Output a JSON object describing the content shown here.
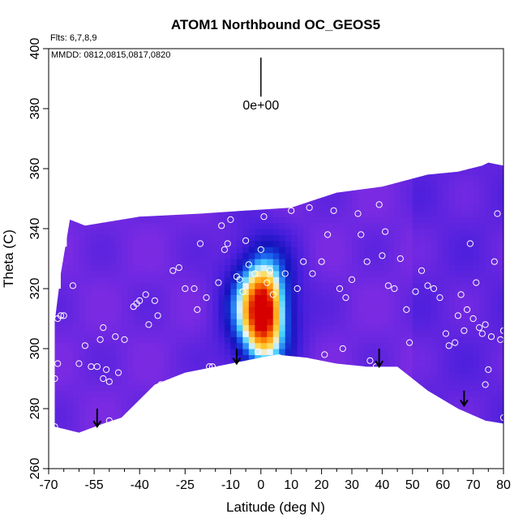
{
  "chart_data": {
    "type": "heatmap",
    "title": "ATOM1 Northbound OC_GEOS5",
    "xlabel": "Latitude (deg N)",
    "ylabel": "Theta (C)",
    "xlim": [
      -70,
      80
    ],
    "ylim": [
      260,
      400
    ],
    "x_major_ticks": [
      -70,
      -55,
      -40,
      -25,
      -10,
      0,
      10,
      20,
      30,
      40,
      50,
      60,
      70,
      80
    ],
    "x_minor_ticks": [
      -65,
      -60,
      -50,
      -45,
      -35,
      -30,
      -20,
      -15,
      -5,
      5,
      15,
      25,
      35,
      45,
      55,
      65,
      75
    ],
    "y_ticks": [
      260,
      280,
      300,
      320,
      340,
      360,
      380,
      400
    ],
    "annotations": {
      "flights": "Flts: 6,7,8,9",
      "dates": "MMDD: 0812,0815,0817,0820",
      "scale_label": "0e+00",
      "scale_x": 0,
      "scale_y_top": 397,
      "scale_y_bottom": 384
    },
    "colors": {
      "background_field": "#7a2be2",
      "low": "#1010c0",
      "mid": "#30c0ff",
      "high": "#ffb000",
      "peak": "#dd0000",
      "markers": "#ffffff",
      "arrows": "#000000"
    },
    "domain_bottom": [
      [
        -68,
        274
      ],
      [
        -60,
        272
      ],
      [
        -52,
        275
      ],
      [
        -46,
        277
      ],
      [
        -35,
        288
      ],
      [
        -25,
        292
      ],
      [
        -15,
        294
      ],
      [
        -5,
        296
      ],
      [
        5,
        298
      ],
      [
        15,
        297
      ],
      [
        25,
        295
      ],
      [
        35,
        294
      ],
      [
        45,
        294
      ],
      [
        55,
        286
      ],
      [
        65,
        280
      ],
      [
        74,
        276
      ],
      [
        80,
        275
      ]
    ],
    "domain_top": [
      [
        -68,
        309
      ],
      [
        -66,
        325
      ],
      [
        -63,
        343
      ],
      [
        -58,
        341
      ],
      [
        -40,
        344
      ],
      [
        -20,
        345
      ],
      [
        -5,
        346
      ],
      [
        10,
        347
      ],
      [
        25,
        352
      ],
      [
        40,
        354
      ],
      [
        55,
        358
      ],
      [
        65,
        359
      ],
      [
        73,
        361
      ],
      [
        75,
        362
      ],
      [
        80,
        361
      ]
    ],
    "hotspot": {
      "center_lat": 0,
      "center_theta": 313,
      "lat_halfwidth": 14,
      "theta_halfwidth": 22,
      "peak_lat": 1,
      "peak_theta": 312
    },
    "arrows": [
      {
        "lat": -54,
        "theta_top": 280,
        "theta_bottom": 274
      },
      {
        "lat": -8,
        "theta_top": 300,
        "theta_bottom": 295
      },
      {
        "lat": 39,
        "theta_top": 300,
        "theta_bottom": 294
      },
      {
        "lat": 67,
        "theta_top": 286,
        "theta_bottom": 281
      }
    ],
    "points": [
      [
        -67,
        310
      ],
      [
        -66,
        311
      ],
      [
        -65,
        311
      ],
      [
        -67,
        295
      ],
      [
        -68,
        290
      ],
      [
        -68,
        274
      ],
      [
        -62,
        321
      ],
      [
        -60,
        295
      ],
      [
        -58,
        301
      ],
      [
        -56,
        294
      ],
      [
        -54,
        294
      ],
      [
        -52,
        290
      ],
      [
        -51,
        293
      ],
      [
        -50,
        289
      ],
      [
        -53,
        303
      ],
      [
        -52,
        307
      ],
      [
        -48,
        304
      ],
      [
        -50,
        276
      ],
      [
        -45,
        276
      ],
      [
        -44,
        277
      ],
      [
        -47,
        292
      ],
      [
        -45,
        303
      ],
      [
        -42,
        314
      ],
      [
        -41,
        315
      ],
      [
        -40,
        316
      ],
      [
        -38,
        318
      ],
      [
        -37,
        308
      ],
      [
        -35,
        316
      ],
      [
        -34,
        311
      ],
      [
        -33,
        288
      ],
      [
        -29,
        326
      ],
      [
        -27,
        327
      ],
      [
        -25,
        320
      ],
      [
        -22,
        320
      ],
      [
        -21,
        313
      ],
      [
        -20,
        335
      ],
      [
        -18,
        317
      ],
      [
        -17,
        294
      ],
      [
        -16,
        294
      ],
      [
        -14,
        322
      ],
      [
        -13,
        341
      ],
      [
        -12,
        333
      ],
      [
        -11,
        335
      ],
      [
        -10,
        343
      ],
      [
        -8,
        324
      ],
      [
        -7,
        323
      ],
      [
        -6,
        319
      ],
      [
        -5,
        336
      ],
      [
        -4,
        328
      ],
      [
        -2,
        325
      ],
      [
        -1,
        299
      ],
      [
        0,
        333
      ],
      [
        1,
        344
      ],
      [
        2,
        322
      ],
      [
        3,
        326
      ],
      [
        4,
        318
      ],
      [
        6,
        297
      ],
      [
        8,
        325
      ],
      [
        10,
        346
      ],
      [
        12,
        320
      ],
      [
        14,
        329
      ],
      [
        16,
        347
      ],
      [
        17,
        325
      ],
      [
        20,
        329
      ],
      [
        21,
        298
      ],
      [
        22,
        338
      ],
      [
        24,
        346
      ],
      [
        26,
        320
      ],
      [
        27,
        300
      ],
      [
        28,
        317
      ],
      [
        30,
        323
      ],
      [
        32,
        345
      ],
      [
        33,
        338
      ],
      [
        35,
        329
      ],
      [
        36,
        296
      ],
      [
        38,
        294
      ],
      [
        39,
        348
      ],
      [
        40,
        331
      ],
      [
        41,
        339
      ],
      [
        42,
        321
      ],
      [
        44,
        320
      ],
      [
        46,
        330
      ],
      [
        48,
        313
      ],
      [
        49,
        302
      ],
      [
        51,
        319
      ],
      [
        53,
        326
      ],
      [
        55,
        321
      ],
      [
        57,
        320
      ],
      [
        59,
        317
      ],
      [
        61,
        305
      ],
      [
        62,
        301
      ],
      [
        64,
        302
      ],
      [
        65,
        311
      ],
      [
        66,
        318
      ],
      [
        67,
        306
      ],
      [
        68,
        313
      ],
      [
        69,
        335
      ],
      [
        70,
        310
      ],
      [
        71,
        322
      ],
      [
        72,
        307
      ],
      [
        73,
        305
      ],
      [
        74,
        308
      ],
      [
        74,
        288
      ],
      [
        75,
        293
      ],
      [
        76,
        304
      ],
      [
        77,
        329
      ],
      [
        78,
        345
      ],
      [
        79,
        303
      ],
      [
        80,
        306
      ],
      [
        80,
        277
      ]
    ]
  }
}
